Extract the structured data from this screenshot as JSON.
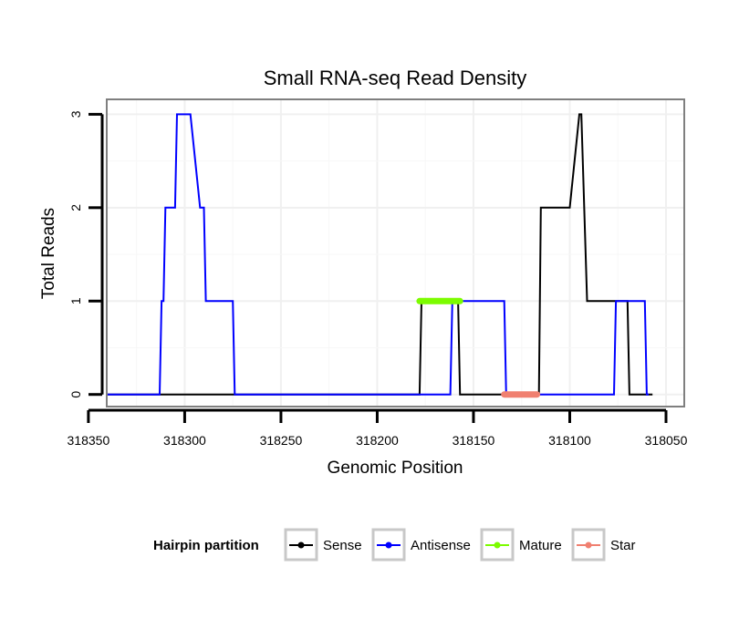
{
  "chart_data": {
    "type": "line",
    "title": "Small RNA-seq Read Density",
    "xlabel": "Genomic Position",
    "ylabel": "Total Reads",
    "xlim": [
      318340,
      318041
    ],
    "x_reversed": true,
    "ylim": [
      -0.12,
      3.15
    ],
    "grid": true,
    "x_ticks": [
      318350,
      318300,
      318250,
      318200,
      318150,
      318100,
      318050
    ],
    "x_tick_labels": [
      "318350",
      "318300",
      "318250",
      "318200",
      "318150",
      "318100",
      "318050"
    ],
    "y_ticks": [
      0,
      1,
      2,
      3
    ],
    "y_tick_labels": [
      "0",
      "1",
      "2",
      "3"
    ],
    "series": [
      {
        "name": "Sense",
        "color": "#000000",
        "x": [
          318340,
          318178,
          318177,
          318158,
          318157,
          318116,
          318115,
          318101,
          318100,
          318095,
          318094,
          318091,
          318090,
          318070,
          318069,
          318057
        ],
        "y": [
          0,
          0,
          1,
          1,
          0,
          0,
          2,
          2,
          2,
          3,
          3,
          1,
          1,
          1,
          0,
          0
        ]
      },
      {
        "name": "Antisense",
        "color": "#0000ff",
        "x": [
          318340,
          318313,
          318312,
          318311,
          318310,
          318305,
          318304,
          318298,
          318297,
          318292,
          318291,
          318290,
          318289,
          318275,
          318274,
          318162,
          318161,
          318134,
          318133,
          318077,
          318076,
          318061,
          318060,
          318059
        ],
        "y": [
          0,
          0,
          1,
          1,
          2,
          2,
          3,
          3,
          3,
          2,
          2,
          2,
          1,
          1,
          0,
          0,
          1,
          1,
          0,
          0,
          1,
          1,
          0,
          0
        ]
      },
      {
        "name": "Mature",
        "color": "#7cfc00",
        "x": [
          318178,
          318157
        ],
        "y": [
          1,
          1
        ]
      },
      {
        "name": "Star",
        "color": "#f08070",
        "x": [
          318134,
          318117
        ],
        "y": [
          0,
          0
        ]
      }
    ],
    "legend": {
      "title": "Hairpin partition",
      "position": "bottom",
      "entries": [
        "Sense",
        "Antisense",
        "Mature",
        "Star"
      ]
    }
  }
}
